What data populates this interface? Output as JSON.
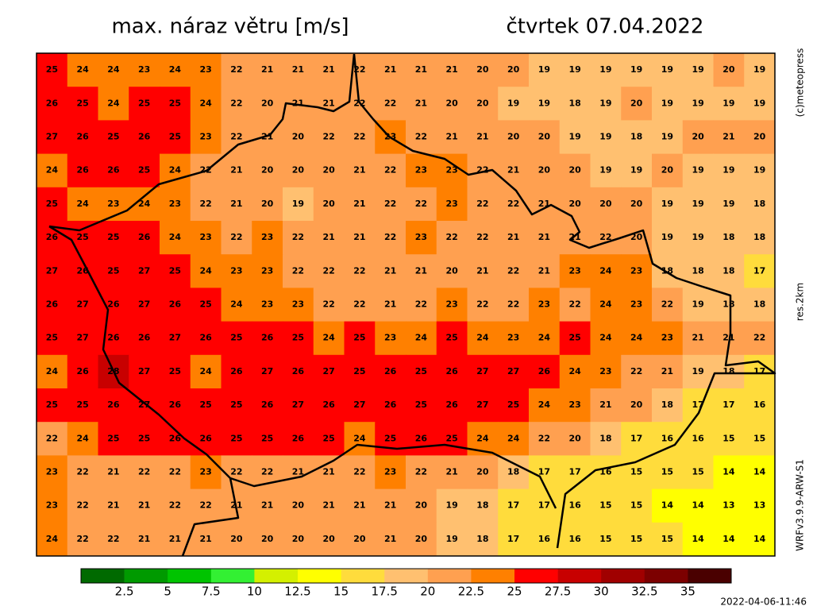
{
  "header": {
    "title": "max. náraz větru [m/s]",
    "date": "čtvrtek 07.04.2022"
  },
  "side_labels": [
    "(c)meteopress",
    "res.2km",
    "WRFv3.9.9-ARW-S1"
  ],
  "timestamp": "2022-04-06-11:46",
  "map": {
    "rows": [
      [
        25,
        24,
        24,
        23,
        24,
        23,
        22,
        21,
        21,
        21,
        22,
        21,
        21,
        21,
        20,
        20,
        19,
        19,
        19,
        19,
        19,
        19,
        20,
        19
      ],
      [
        26,
        25,
        24,
        25,
        25,
        24,
        22,
        20,
        21,
        21,
        22,
        22,
        21,
        20,
        20,
        19,
        19,
        18,
        19,
        20,
        19,
        19,
        19,
        19
      ],
      [
        27,
        26,
        25,
        26,
        25,
        23,
        22,
        21,
        20,
        22,
        22,
        23,
        22,
        21,
        21,
        20,
        20,
        19,
        19,
        18,
        19,
        20,
        21,
        20
      ],
      [
        24,
        26,
        26,
        25,
        24,
        22,
        21,
        20,
        20,
        20,
        21,
        22,
        23,
        23,
        22,
        21,
        20,
        20,
        19,
        19,
        20,
        19,
        19,
        19
      ],
      [
        25,
        24,
        23,
        24,
        23,
        22,
        21,
        20,
        19,
        20,
        21,
        22,
        22,
        23,
        22,
        22,
        21,
        20,
        20,
        20,
        19,
        19,
        19,
        18
      ],
      [
        26,
        25,
        25,
        26,
        24,
        23,
        22,
        23,
        22,
        21,
        21,
        22,
        23,
        22,
        22,
        21,
        21,
        21,
        22,
        20,
        19,
        19,
        18,
        18
      ],
      [
        27,
        26,
        25,
        27,
        25,
        24,
        23,
        23,
        22,
        22,
        22,
        21,
        21,
        20,
        21,
        22,
        21,
        23,
        24,
        23,
        18,
        18,
        18,
        17
      ],
      [
        26,
        27,
        26,
        27,
        26,
        25,
        24,
        23,
        23,
        22,
        22,
        21,
        22,
        23,
        22,
        22,
        23,
        22,
        24,
        23,
        22,
        19,
        18,
        18
      ],
      [
        25,
        27,
        26,
        26,
        27,
        26,
        25,
        26,
        25,
        24,
        25,
        23,
        24,
        25,
        24,
        23,
        24,
        25,
        24,
        24,
        23,
        21,
        21,
        22
      ],
      [
        24,
        26,
        28,
        27,
        25,
        24,
        26,
        27,
        26,
        27,
        25,
        26,
        25,
        26,
        27,
        27,
        26,
        24,
        23,
        22,
        21,
        19,
        18,
        17
      ],
      [
        25,
        25,
        26,
        27,
        26,
        25,
        25,
        26,
        27,
        26,
        27,
        26,
        25,
        26,
        27,
        25,
        24,
        23,
        21,
        20,
        18,
        17,
        17,
        16
      ],
      [
        22,
        24,
        25,
        25,
        26,
        26,
        25,
        25,
        26,
        25,
        24,
        25,
        26,
        25,
        24,
        24,
        22,
        20,
        18,
        17,
        16,
        16,
        15,
        15
      ],
      [
        23,
        22,
        21,
        22,
        22,
        23,
        22,
        22,
        21,
        21,
        22,
        23,
        22,
        21,
        20,
        18,
        17,
        17,
        16,
        15,
        15,
        15,
        14,
        14
      ],
      [
        23,
        22,
        21,
        21,
        22,
        22,
        21,
        21,
        20,
        21,
        21,
        21,
        20,
        19,
        18,
        17,
        17,
        16,
        15,
        15,
        14,
        14,
        13,
        13
      ],
      [
        24,
        22,
        22,
        21,
        21,
        21,
        20,
        20,
        20,
        20,
        20,
        21,
        20,
        19,
        18,
        17,
        16,
        16,
        15,
        15,
        15,
        14,
        14,
        14
      ]
    ]
  },
  "legend": {
    "colors": [
      "#006a00",
      "#009a00",
      "#00c400",
      "#33f033",
      "#d4f000",
      "#ffff00",
      "#ffdc3c",
      "#ffc070",
      "#ffa050",
      "#ff8000",
      "#ff0000",
      "#c80000",
      "#a00000",
      "#7c0000",
      "#4a0000"
    ],
    "labels": [
      2.5,
      5,
      7.5,
      10,
      12.5,
      15,
      17.5,
      20,
      22.5,
      25,
      27.5,
      30,
      32.5,
      35
    ]
  }
}
